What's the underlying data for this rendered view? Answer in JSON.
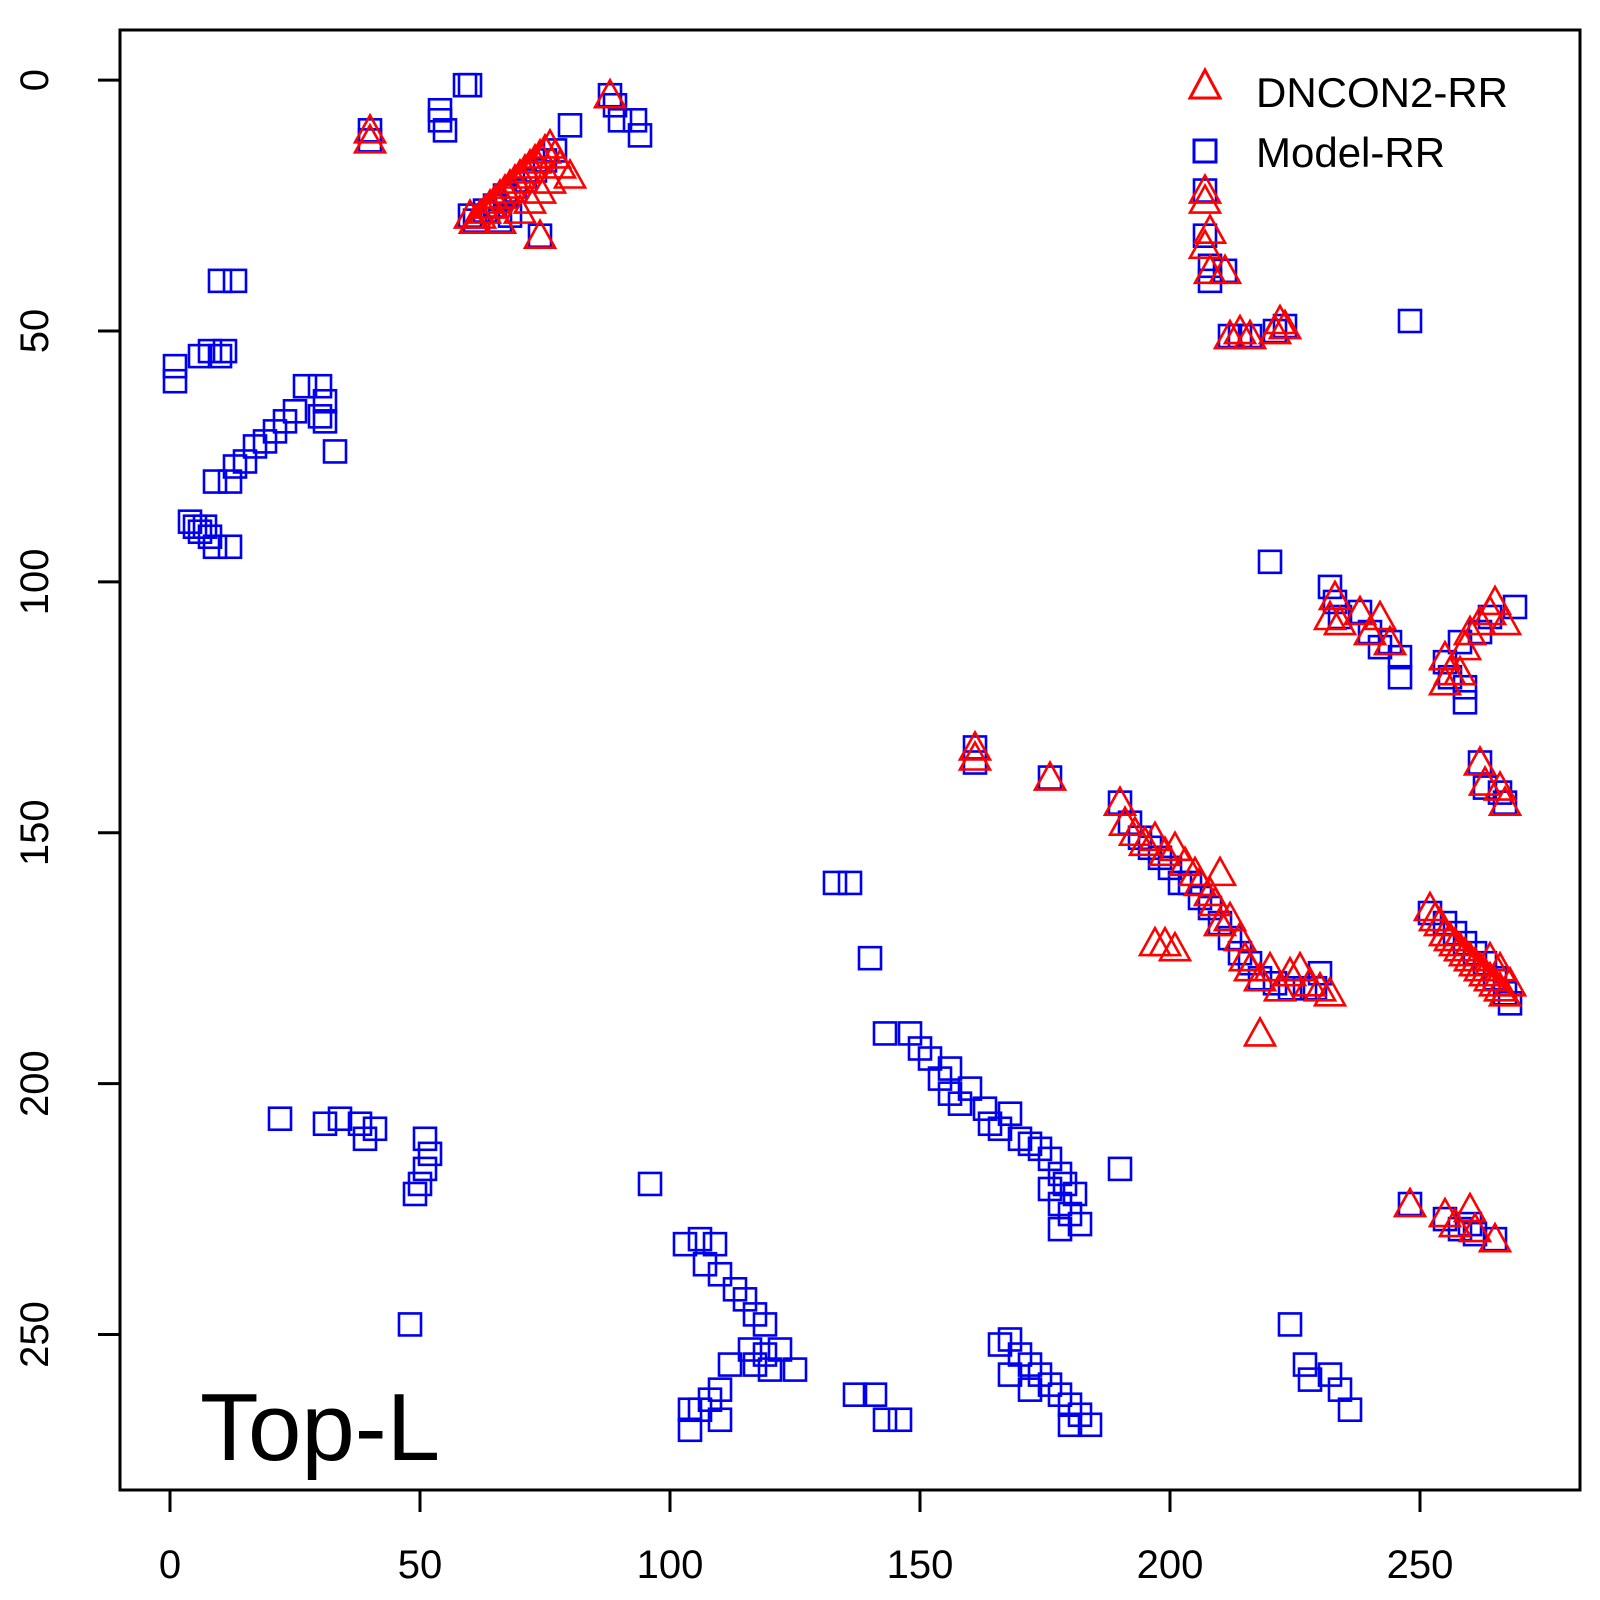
{
  "chart_data": {
    "type": "scatter",
    "title": "",
    "xlabel": "",
    "ylabel": "",
    "annotation": "Top-L",
    "xlim": [
      -10,
      282
    ],
    "ylim": [
      -10,
      281
    ],
    "y_reversed": true,
    "x_ticks": [
      0,
      50,
      100,
      150,
      200,
      250
    ],
    "y_ticks": [
      0,
      50,
      100,
      150,
      200,
      250
    ],
    "legend_position": "top-right",
    "grid": false,
    "series": [
      {
        "name": "DNCON2-RR",
        "marker": "triangle",
        "color": "#ff0000",
        "points": [
          [
            40,
            10
          ],
          [
            40,
            12
          ],
          [
            88,
            3
          ],
          [
            60,
            27
          ],
          [
            61,
            28
          ],
          [
            62,
            27
          ],
          [
            63,
            26
          ],
          [
            64,
            25
          ],
          [
            65,
            24
          ],
          [
            66,
            23
          ],
          [
            67,
            22
          ],
          [
            68,
            21
          ],
          [
            69,
            20
          ],
          [
            70,
            19
          ],
          [
            71,
            18
          ],
          [
            72,
            17
          ],
          [
            73,
            16
          ],
          [
            74,
            15
          ],
          [
            75,
            14
          ],
          [
            76,
            13
          ],
          [
            77,
            15
          ],
          [
            78,
            17
          ],
          [
            80,
            19
          ],
          [
            66,
            28
          ],
          [
            70,
            26
          ],
          [
            72,
            24
          ],
          [
            74,
            22
          ],
          [
            76,
            20
          ],
          [
            74,
            31
          ],
          [
            207,
            22
          ],
          [
            207,
            24
          ],
          [
            208,
            30
          ],
          [
            207,
            33
          ],
          [
            208,
            38
          ],
          [
            211,
            38
          ],
          [
            212,
            51
          ],
          [
            214,
            50
          ],
          [
            216,
            51
          ],
          [
            221,
            50
          ],
          [
            222,
            48
          ],
          [
            223,
            49
          ],
          [
            232,
            107
          ],
          [
            233,
            103
          ],
          [
            234,
            108
          ],
          [
            238,
            106
          ],
          [
            240,
            110
          ],
          [
            242,
            107
          ],
          [
            244,
            112
          ],
          [
            255,
            115
          ],
          [
            256,
            118
          ],
          [
            258,
            118
          ],
          [
            259,
            113
          ],
          [
            260,
            110
          ],
          [
            262,
            108
          ],
          [
            264,
            106
          ],
          [
            265,
            104
          ],
          [
            267,
            108
          ],
          [
            255,
            120
          ],
          [
            161,
            133
          ],
          [
            161,
            135
          ],
          [
            176,
            139
          ],
          [
            262,
            136
          ],
          [
            263,
            140
          ],
          [
            266,
            141
          ],
          [
            267,
            144
          ],
          [
            190,
            144
          ],
          [
            191,
            148
          ],
          [
            193,
            150
          ],
          [
            195,
            152
          ],
          [
            197,
            151
          ],
          [
            199,
            154
          ],
          [
            201,
            153
          ],
          [
            203,
            156
          ],
          [
            205,
            158
          ],
          [
            206,
            160
          ],
          [
            208,
            162
          ],
          [
            209,
            164
          ],
          [
            210,
            168
          ],
          [
            212,
            167
          ],
          [
            214,
            171
          ],
          [
            215,
            175
          ],
          [
            216,
            177
          ],
          [
            218,
            179
          ],
          [
            220,
            177
          ],
          [
            222,
            181
          ],
          [
            224,
            178
          ],
          [
            226,
            177
          ],
          [
            228,
            180
          ],
          [
            230,
            181
          ],
          [
            232,
            182
          ],
          [
            197,
            172
          ],
          [
            199,
            172
          ],
          [
            201,
            173
          ],
          [
            210,
            158
          ],
          [
            218,
            190
          ],
          [
            252,
            165
          ],
          [
            253,
            167
          ],
          [
            254,
            168
          ],
          [
            255,
            170
          ],
          [
            256,
            171
          ],
          [
            257,
            172
          ],
          [
            258,
            173
          ],
          [
            259,
            174
          ],
          [
            260,
            175
          ],
          [
            261,
            176
          ],
          [
            262,
            177
          ],
          [
            263,
            178
          ],
          [
            264,
            179
          ],
          [
            265,
            180
          ],
          [
            266,
            181
          ],
          [
            267,
            182
          ],
          [
            268,
            180
          ],
          [
            266,
            177
          ],
          [
            264,
            175
          ],
          [
            248,
            224
          ],
          [
            255,
            226
          ],
          [
            257,
            228
          ],
          [
            260,
            225
          ],
          [
            261,
            229
          ],
          [
            265,
            231
          ]
        ]
      },
      {
        "name": "Model-RR",
        "marker": "square",
        "color": "#0000ee",
        "points": [
          [
            40,
            10
          ],
          [
            40,
            12
          ],
          [
            54,
            6
          ],
          [
            54,
            8
          ],
          [
            55,
            10
          ],
          [
            59,
            1
          ],
          [
            60,
            1
          ],
          [
            88,
            3
          ],
          [
            89,
            5
          ],
          [
            90,
            8
          ],
          [
            93,
            8
          ],
          [
            94,
            11
          ],
          [
            80,
            9
          ],
          [
            60,
            27
          ],
          [
            61,
            28
          ],
          [
            63,
            26
          ],
          [
            65,
            25
          ],
          [
            67,
            23
          ],
          [
            69,
            22
          ],
          [
            71,
            20
          ],
          [
            73,
            18
          ],
          [
            75,
            16
          ],
          [
            77,
            14
          ],
          [
            74,
            31
          ],
          [
            66,
            28
          ],
          [
            68,
            27
          ],
          [
            10,
            40
          ],
          [
            13,
            40
          ],
          [
            1,
            57
          ],
          [
            1,
            60
          ],
          [
            6,
            55
          ],
          [
            8,
            54
          ],
          [
            10,
            55
          ],
          [
            11,
            54
          ],
          [
            27,
            61
          ],
          [
            30,
            61
          ],
          [
            31,
            64
          ],
          [
            30,
            67
          ],
          [
            31,
            68
          ],
          [
            33,
            74
          ],
          [
            25,
            66
          ],
          [
            23,
            68
          ],
          [
            21,
            70
          ],
          [
            19,
            72
          ],
          [
            17,
            73
          ],
          [
            15,
            76
          ],
          [
            13,
            77
          ],
          [
            12,
            80
          ],
          [
            9,
            80
          ],
          [
            4,
            88
          ],
          [
            5,
            89
          ],
          [
            7,
            89
          ],
          [
            8,
            91
          ],
          [
            9,
            93
          ],
          [
            12,
            93
          ],
          [
            6,
            90
          ],
          [
            207,
            22
          ],
          [
            207,
            31
          ],
          [
            208,
            37
          ],
          [
            208,
            40
          ],
          [
            211,
            38
          ],
          [
            212,
            51
          ],
          [
            214,
            51
          ],
          [
            216,
            51
          ],
          [
            221,
            50
          ],
          [
            223,
            49
          ],
          [
            248,
            48
          ],
          [
            220,
            96
          ],
          [
            232,
            101
          ],
          [
            233,
            104
          ],
          [
            234,
            107
          ],
          [
            238,
            106
          ],
          [
            240,
            110
          ],
          [
            242,
            113
          ],
          [
            244,
            112
          ],
          [
            246,
            115
          ],
          [
            246,
            119
          ],
          [
            255,
            116
          ],
          [
            256,
            119
          ],
          [
            259,
            121
          ],
          [
            259,
            124
          ],
          [
            258,
            112
          ],
          [
            262,
            110
          ],
          [
            264,
            107
          ],
          [
            269,
            105
          ],
          [
            161,
            133
          ],
          [
            161,
            136
          ],
          [
            176,
            139
          ],
          [
            262,
            136
          ],
          [
            263,
            141
          ],
          [
            266,
            142
          ],
          [
            267,
            144
          ],
          [
            190,
            144
          ],
          [
            192,
            148
          ],
          [
            194,
            151
          ],
          [
            196,
            153
          ],
          [
            198,
            155
          ],
          [
            200,
            157
          ],
          [
            202,
            160
          ],
          [
            204,
            160
          ],
          [
            206,
            163
          ],
          [
            208,
            165
          ],
          [
            210,
            168
          ],
          [
            212,
            171
          ],
          [
            214,
            174
          ],
          [
            216,
            176
          ],
          [
            218,
            179
          ],
          [
            221,
            180
          ],
          [
            224,
            181
          ],
          [
            227,
            181
          ],
          [
            229,
            181
          ],
          [
            230,
            178
          ],
          [
            252,
            166
          ],
          [
            255,
            168
          ],
          [
            257,
            170
          ],
          [
            259,
            172
          ],
          [
            261,
            174
          ],
          [
            263,
            176
          ],
          [
            265,
            179
          ],
          [
            267,
            182
          ],
          [
            268,
            184
          ],
          [
            248,
            224
          ],
          [
            255,
            227
          ],
          [
            258,
            229
          ],
          [
            260,
            228
          ],
          [
            261,
            230
          ],
          [
            265,
            231
          ],
          [
            133,
            160
          ],
          [
            136,
            160
          ],
          [
            140,
            175
          ],
          [
            143,
            190
          ],
          [
            148,
            190
          ],
          [
            150,
            193
          ],
          [
            152,
            195
          ],
          [
            154,
            199
          ],
          [
            156,
            197
          ],
          [
            156,
            202
          ],
          [
            158,
            204
          ],
          [
            160,
            201
          ],
          [
            163,
            205
          ],
          [
            164,
            208
          ],
          [
            166,
            209
          ],
          [
            168,
            206
          ],
          [
            170,
            211
          ],
          [
            172,
            212
          ],
          [
            174,
            213
          ],
          [
            176,
            215
          ],
          [
            178,
            218
          ],
          [
            179,
            220
          ],
          [
            181,
            222
          ],
          [
            176,
            221
          ],
          [
            178,
            224
          ],
          [
            180,
            226
          ],
          [
            182,
            228
          ],
          [
            178,
            229
          ],
          [
            190,
            217
          ],
          [
            22,
            207
          ],
          [
            31,
            208
          ],
          [
            34,
            207
          ],
          [
            38,
            208
          ],
          [
            39,
            211
          ],
          [
            41,
            209
          ],
          [
            51,
            211
          ],
          [
            52,
            214
          ],
          [
            51,
            217
          ],
          [
            50,
            220
          ],
          [
            49,
            222
          ],
          [
            48,
            248
          ],
          [
            96,
            220
          ],
          [
            103,
            232
          ],
          [
            106,
            231
          ],
          [
            109,
            232
          ],
          [
            107,
            236
          ],
          [
            110,
            238
          ],
          [
            113,
            241
          ],
          [
            115,
            243
          ],
          [
            117,
            246
          ],
          [
            119,
            248
          ],
          [
            116,
            253
          ],
          [
            119,
            254
          ],
          [
            122,
            253
          ],
          [
            125,
            257
          ],
          [
            120,
            257
          ],
          [
            117,
            256
          ],
          [
            112,
            256
          ],
          [
            110,
            261
          ],
          [
            108,
            263
          ],
          [
            106,
            265
          ],
          [
            104,
            265
          ],
          [
            104,
            269
          ],
          [
            110,
            267
          ],
          [
            137,
            262
          ],
          [
            141,
            262
          ],
          [
            143,
            267
          ],
          [
            146,
            267
          ],
          [
            166,
            252
          ],
          [
            168,
            251
          ],
          [
            170,
            254
          ],
          [
            172,
            256
          ],
          [
            174,
            258
          ],
          [
            176,
            260
          ],
          [
            178,
            262
          ],
          [
            180,
            264
          ],
          [
            182,
            266
          ],
          [
            184,
            268
          ],
          [
            180,
            268
          ],
          [
            172,
            261
          ],
          [
            168,
            258
          ],
          [
            224,
            248
          ],
          [
            227,
            256
          ],
          [
            228,
            259
          ],
          [
            232,
            258
          ],
          [
            234,
            261
          ],
          [
            236,
            265
          ]
        ]
      }
    ]
  }
}
